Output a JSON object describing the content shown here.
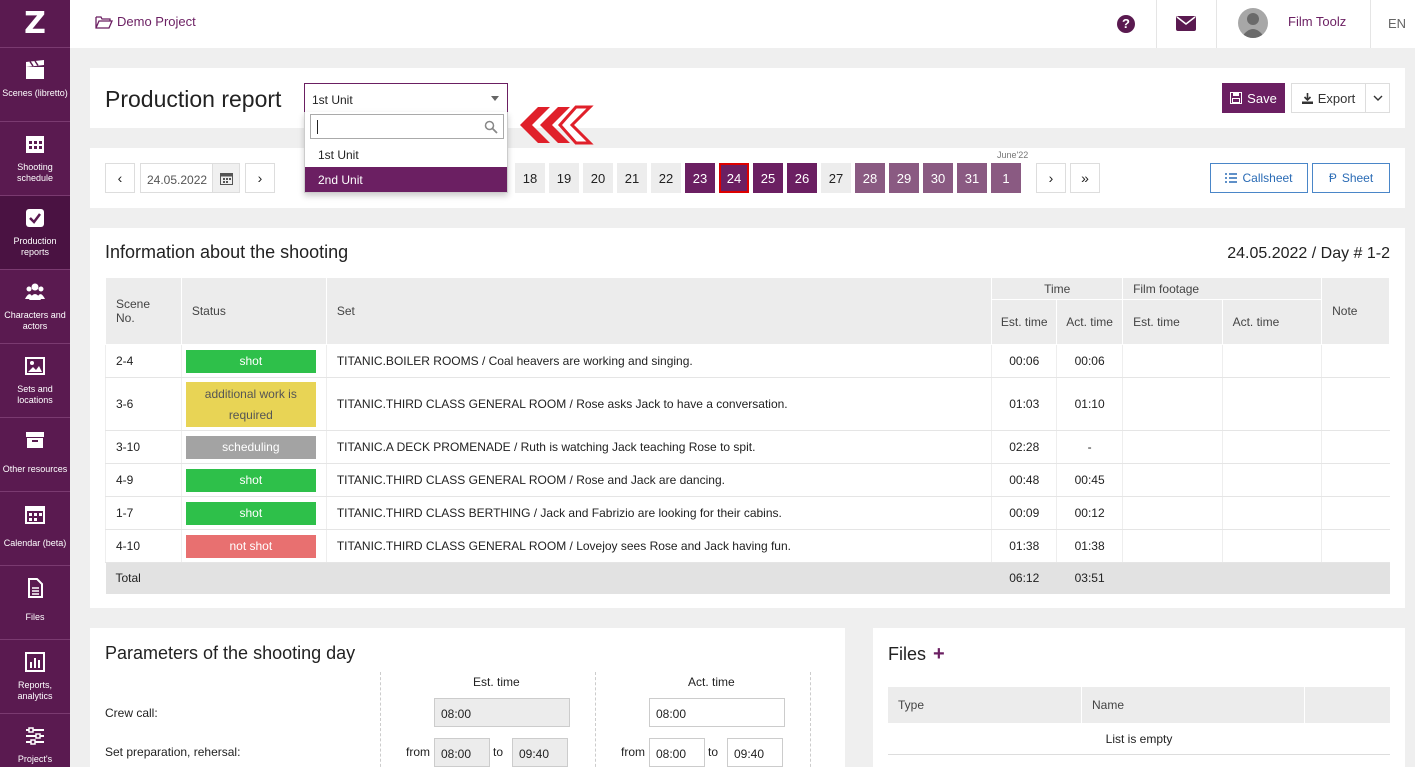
{
  "sidebar": {
    "logo": "Z",
    "items": [
      {
        "label": "Scenes (libretto)",
        "icon": "clapperboard-icon"
      },
      {
        "label": "Shooting schedule",
        "icon": "calendar-grid-icon"
      },
      {
        "label": "Production reports",
        "icon": "check-square-icon"
      },
      {
        "label": "Characters and actors",
        "icon": "users-icon"
      },
      {
        "label": "Sets and locations",
        "icon": "image-icon"
      },
      {
        "label": "Other resources",
        "icon": "archive-box-icon"
      },
      {
        "label": "Calendar (beta)",
        "icon": "calendar-icon"
      },
      {
        "label": "Files",
        "icon": "file-icon"
      },
      {
        "label": "Reports, analytics",
        "icon": "bar-chart-icon"
      },
      {
        "label": "Project's",
        "icon": "sliders-icon"
      }
    ]
  },
  "topbar": {
    "project": "Demo Project",
    "user": "Film Toolz",
    "lang": "EN"
  },
  "header": {
    "title": "Production report",
    "unit_selected": "1st Unit",
    "unit_options": [
      "1st Unit",
      "2nd Unit"
    ],
    "save": "Save",
    "export": "Export"
  },
  "datebar": {
    "date": "24.05.2022",
    "prev": "‹",
    "next": "›",
    "days": [
      "18",
      "19",
      "20",
      "21",
      "22",
      "23",
      "24",
      "25",
      "26",
      "27",
      "28",
      "29",
      "30",
      "31",
      "1"
    ],
    "month": "June'22",
    "next2": "›",
    "last": "»",
    "callsheet": "Callsheet",
    "sheet": "Sheet"
  },
  "info": {
    "title": "Information about the shooting",
    "date": "24.05.2022 / Day # 1-2",
    "headers": {
      "scene": "Scene No.",
      "status": "Status",
      "set": "Set",
      "time": "Time",
      "est": "Est. time",
      "act": "Act. time",
      "footage": "Film footage",
      "f_est": "Est. time",
      "f_act": "Act. time",
      "note": "Note"
    },
    "rows": [
      {
        "scene": "2-4",
        "status": "shot",
        "set": "TITANIC.BOILER ROOMS / Coal heavers are working and singing.",
        "est": "00:06",
        "act": "00:06"
      },
      {
        "scene": "3-6",
        "status": "additional work is required",
        "set": "TITANIC.THIRD CLASS GENERAL ROOM / Rose asks Jack to have a conversation.",
        "est": "01:03",
        "act": "01:10"
      },
      {
        "scene": "3-10",
        "status": "scheduling",
        "set": "TITANIC.A DECK PROMENADE / Ruth is watching Jack teaching Rose to spit.",
        "est": "02:28",
        "act": "-"
      },
      {
        "scene": "4-9",
        "status": "shot",
        "set": "TITANIC.THIRD CLASS GENERAL ROOM / Rose and Jack are dancing.",
        "est": "00:48",
        "act": "00:45"
      },
      {
        "scene": "1-7",
        "status": "shot",
        "set": "TITANIC.THIRD CLASS BERTHING / Jack and Fabrizio are looking for their cabins.",
        "est": "00:09",
        "act": "00:12"
      },
      {
        "scene": "4-10",
        "status": "not shot",
        "set": "TITANIC.THIRD CLASS GENERAL ROOM / Lovejoy sees Rose and Jack having fun.",
        "est": "01:38",
        "act": "01:38"
      }
    ],
    "total": {
      "label": "Total",
      "est": "06:12",
      "act": "03:51"
    }
  },
  "params": {
    "title": "Parameters of the shooting day",
    "est_header": "Est. time",
    "act_header": "Act. time",
    "crew_call": "Crew call:",
    "crew_est": "08:00",
    "crew_act": "08:00",
    "set_prep": "Set preparation, rehersal:",
    "from": "from",
    "to": "to",
    "prep_est_from": "08:00",
    "prep_est_to": "09:40",
    "prep_act_from": "08:00",
    "prep_act_to": "09:40"
  },
  "files": {
    "title": "Files",
    "add": "+",
    "col_type": "Type",
    "col_name": "Name",
    "empty": "List is empty"
  }
}
